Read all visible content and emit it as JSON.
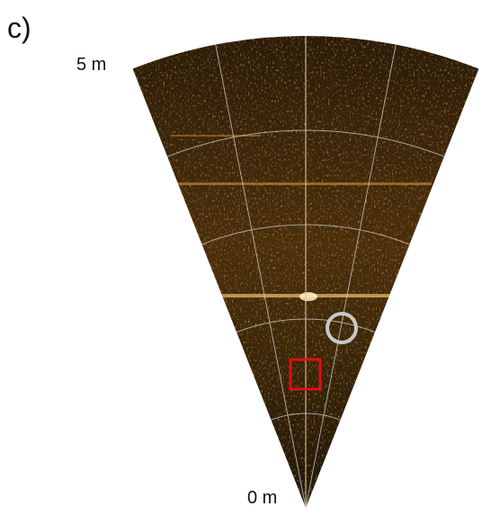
{
  "panel_label": "c)",
  "range_labels": {
    "max": "5 m",
    "min": "0 m"
  }
}
